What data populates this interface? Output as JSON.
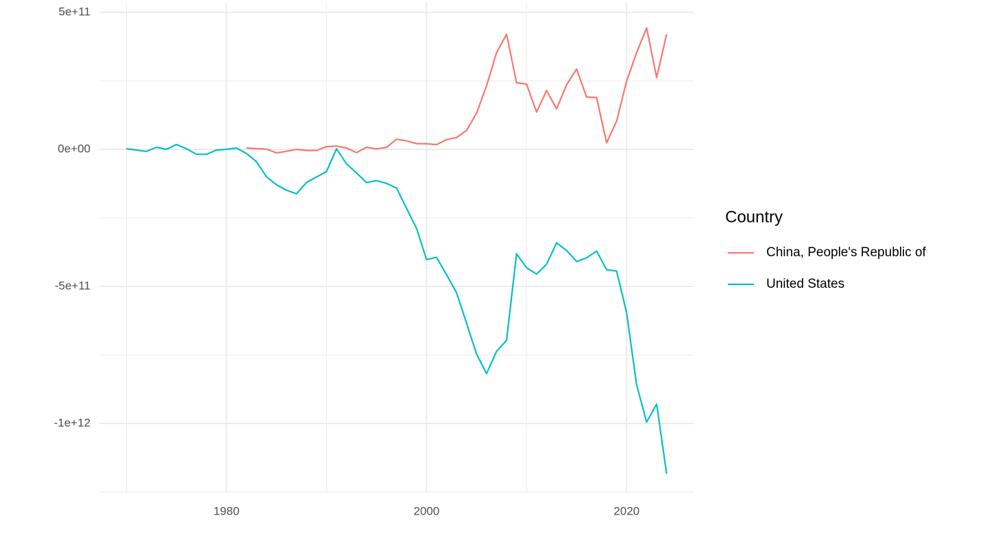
{
  "chart_data": {
    "type": "line",
    "x": [
      1970,
      1971,
      1972,
      1973,
      1974,
      1975,
      1976,
      1977,
      1978,
      1979,
      1980,
      1981,
      1982,
      1983,
      1984,
      1985,
      1986,
      1987,
      1988,
      1989,
      1990,
      1991,
      1992,
      1993,
      1994,
      1995,
      1996,
      1997,
      1998,
      1999,
      2000,
      2001,
      2002,
      2003,
      2004,
      2005,
      2006,
      2007,
      2008,
      2009,
      2010,
      2011,
      2012,
      2013,
      2014,
      2015,
      2016,
      2017,
      2018,
      2019,
      2020,
      2021,
      2022,
      2023,
      2024
    ],
    "series": [
      {
        "name": "China, People's Republic of",
        "color": "#F8766D",
        "values": [
          null,
          null,
          null,
          null,
          null,
          null,
          null,
          null,
          null,
          null,
          null,
          null,
          5000000000,
          2500000000,
          1000000000,
          -13000000000,
          -7000000000,
          0,
          -4000000000,
          -4000000000,
          10000000000,
          12000000000,
          5000000000,
          -12000000000,
          7600000000,
          1700000000,
          7200000000,
          37000000000,
          31000000000,
          21000000000,
          20500000000,
          17400000000,
          35400000000,
          43000000000,
          69000000000,
          132000000000,
          232000000000,
          353000000000,
          420000000000,
          243000000000,
          238000000000,
          136000000000,
          215000000000,
          148000000000,
          236000000000,
          293000000000,
          191000000000,
          189000000000,
          24000000000,
          103000000000,
          249000000000,
          353000000000,
          443000000000,
          262000000000,
          420000000000
        ]
      },
      {
        "name": "United States",
        "color": "#00BFC4",
        "values": [
          2500000000,
          -2500000000,
          -7600000000,
          7600000000,
          0,
          17700000000,
          2500000000,
          -18000000000,
          -18000000000,
          -2500000000,
          0,
          5000000000,
          -15000000000,
          -45000000000,
          -100000000000,
          -129000000000,
          -149000000000,
          -162000000000,
          -121000000000,
          -101000000000,
          -81000000000,
          2500000000,
          -53000000000,
          -86000000000,
          -121000000000,
          -114000000000,
          -124000000000,
          -141000000000,
          -215000000000,
          -288000000000,
          -402000000000,
          -394000000000,
          -457000000000,
          -523000000000,
          -634000000000,
          -747000000000,
          -818000000000,
          -737000000000,
          -697000000000,
          -381000000000,
          -432000000000,
          -455000000000,
          -419000000000,
          -341000000000,
          -369000000000,
          -409000000000,
          -396000000000,
          -371000000000,
          -439000000000,
          -444000000000,
          -596000000000,
          -859000000000,
          -995000000000,
          -929000000000,
          -1184000000000
        ]
      }
    ],
    "xlim": [
      1967.3,
      2026.7
    ],
    "xticks": [
      1980,
      2000,
      2020
    ],
    "ylim": [
      -1250000000000,
      535000000000
    ],
    "yticks": [
      {
        "value": -1000000000000,
        "label": "-1e+12"
      },
      {
        "value": -500000000000,
        "label": "-5e+11"
      },
      {
        "value": 0,
        "label": "0e+00"
      },
      {
        "value": 500000000000,
        "label": "5e+11"
      }
    ],
    "grid": true,
    "legend_title": "Country",
    "legend_position": "right"
  }
}
